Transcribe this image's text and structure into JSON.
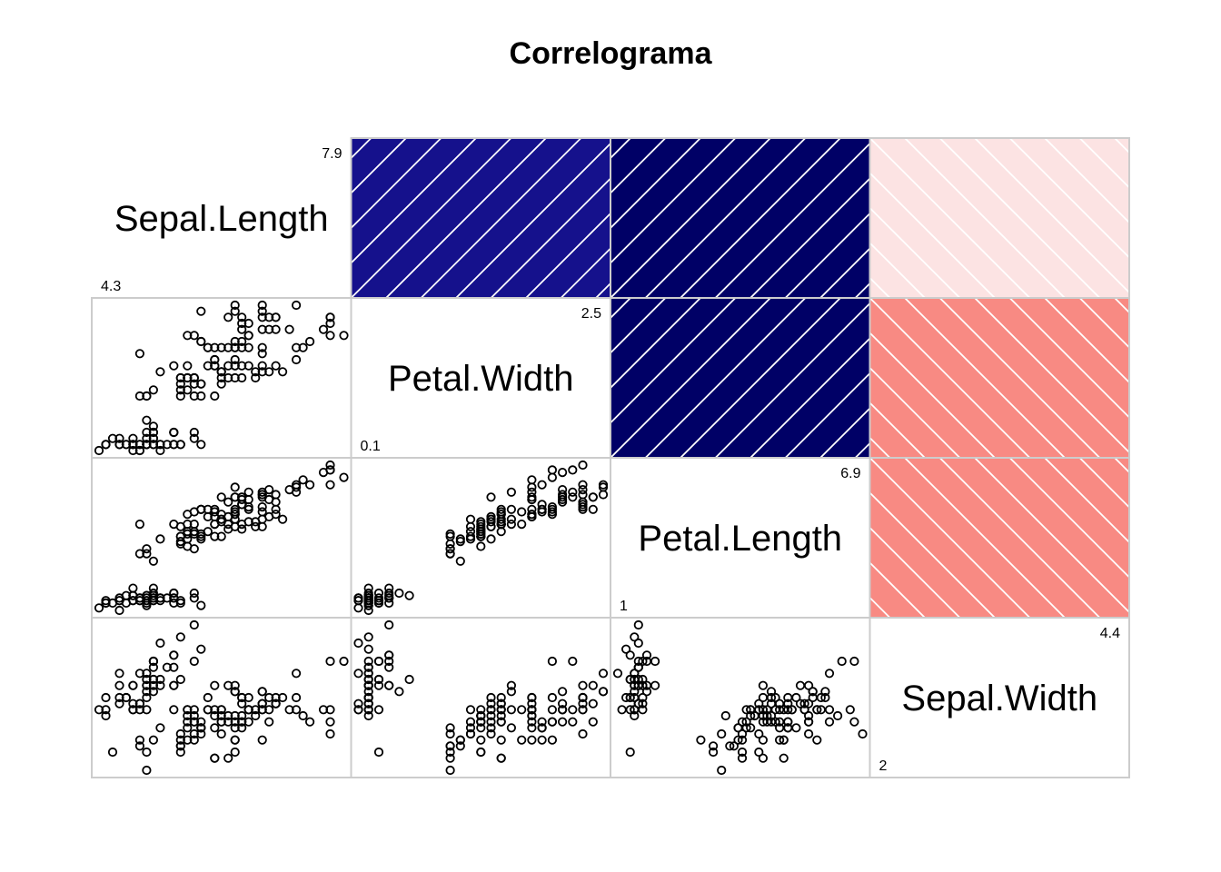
{
  "chart_data": {
    "type": "correlogram",
    "title": "Correlograma",
    "variables": [
      "Sepal.Length",
      "Petal.Width",
      "Petal.Length",
      "Sepal.Width"
    ],
    "ranges": {
      "Sepal.Length": {
        "min": "4.3",
        "max": "7.9"
      },
      "Petal.Width": {
        "min": "0.1",
        "max": "2.5"
      },
      "Petal.Length": {
        "min": "1",
        "max": "6.9"
      },
      "Sepal.Width": {
        "min": "2",
        "max": "4.4"
      }
    },
    "upper_panel": "shade",
    "lower_panel": "points",
    "diagonal_panel": "text",
    "correlations": [
      {
        "row": "Sepal.Length",
        "col": "Petal.Width",
        "r": 0.82,
        "color": "#15118C"
      },
      {
        "row": "Sepal.Length",
        "col": "Petal.Length",
        "r": 0.87,
        "color": "#000066"
      },
      {
        "row": "Sepal.Length",
        "col": "Sepal.Width",
        "r": -0.12,
        "color": "#FCE3E3"
      },
      {
        "row": "Petal.Width",
        "col": "Petal.Length",
        "r": 0.96,
        "color": "#000066"
      },
      {
        "row": "Petal.Width",
        "col": "Sepal.Width",
        "r": -0.37,
        "color": "#F88A83"
      },
      {
        "row": "Petal.Length",
        "col": "Sepal.Width",
        "r": -0.43,
        "color": "#F88A83"
      }
    ],
    "observations": [
      [
        5.1,
        3.5,
        1.4,
        0.2
      ],
      [
        4.9,
        3.0,
        1.4,
        0.2
      ],
      [
        4.7,
        3.2,
        1.3,
        0.2
      ],
      [
        4.6,
        3.1,
        1.5,
        0.2
      ],
      [
        5.0,
        3.6,
        1.4,
        0.2
      ],
      [
        5.4,
        3.9,
        1.7,
        0.4
      ],
      [
        4.6,
        3.4,
        1.4,
        0.3
      ],
      [
        5.0,
        3.4,
        1.5,
        0.2
      ],
      [
        4.4,
        2.9,
        1.4,
        0.2
      ],
      [
        4.9,
        3.1,
        1.5,
        0.1
      ],
      [
        5.4,
        3.7,
        1.5,
        0.2
      ],
      [
        4.8,
        3.4,
        1.6,
        0.2
      ],
      [
        4.8,
        3.0,
        1.4,
        0.1
      ],
      [
        4.3,
        3.0,
        1.1,
        0.1
      ],
      [
        5.8,
        4.0,
        1.2,
        0.2
      ],
      [
        5.7,
        4.4,
        1.5,
        0.4
      ],
      [
        5.4,
        3.9,
        1.3,
        0.4
      ],
      [
        5.1,
        3.5,
        1.4,
        0.3
      ],
      [
        5.7,
        3.8,
        1.7,
        0.3
      ],
      [
        5.1,
        3.8,
        1.5,
        0.3
      ],
      [
        5.4,
        3.4,
        1.7,
        0.2
      ],
      [
        5.1,
        3.7,
        1.5,
        0.4
      ],
      [
        4.6,
        3.6,
        1.0,
        0.2
      ],
      [
        5.1,
        3.3,
        1.7,
        0.5
      ],
      [
        4.8,
        3.4,
        1.9,
        0.2
      ],
      [
        5.0,
        3.0,
        1.6,
        0.2
      ],
      [
        5.0,
        3.4,
        1.6,
        0.4
      ],
      [
        5.2,
        3.5,
        1.5,
        0.2
      ],
      [
        5.2,
        3.4,
        1.4,
        0.2
      ],
      [
        4.7,
        3.2,
        1.6,
        0.2
      ],
      [
        4.8,
        3.1,
        1.6,
        0.2
      ],
      [
        5.4,
        3.4,
        1.5,
        0.4
      ],
      [
        5.2,
        4.1,
        1.5,
        0.1
      ],
      [
        5.5,
        4.2,
        1.4,
        0.2
      ],
      [
        4.9,
        3.1,
        1.5,
        0.2
      ],
      [
        5.0,
        3.2,
        1.2,
        0.2
      ],
      [
        5.5,
        3.5,
        1.3,
        0.2
      ],
      [
        4.9,
        3.6,
        1.4,
        0.1
      ],
      [
        4.4,
        3.0,
        1.3,
        0.2
      ],
      [
        5.1,
        3.4,
        1.5,
        0.2
      ],
      [
        5.0,
        3.5,
        1.3,
        0.3
      ],
      [
        4.5,
        2.3,
        1.3,
        0.3
      ],
      [
        4.4,
        3.2,
        1.3,
        0.2
      ],
      [
        5.0,
        3.5,
        1.6,
        0.6
      ],
      [
        5.1,
        3.8,
        1.9,
        0.4
      ],
      [
        4.8,
        3.0,
        1.4,
        0.3
      ],
      [
        5.1,
        3.8,
        1.6,
        0.2
      ],
      [
        4.6,
        3.2,
        1.4,
        0.2
      ],
      [
        5.3,
        3.7,
        1.5,
        0.2
      ],
      [
        5.0,
        3.3,
        1.4,
        0.2
      ],
      [
        7.0,
        3.2,
        4.7,
        1.4
      ],
      [
        6.4,
        3.2,
        4.5,
        1.5
      ],
      [
        6.9,
        3.1,
        4.9,
        1.5
      ],
      [
        5.5,
        2.3,
        4.0,
        1.3
      ],
      [
        6.5,
        2.8,
        4.6,
        1.5
      ],
      [
        5.7,
        2.8,
        4.5,
        1.3
      ],
      [
        6.3,
        3.3,
        4.7,
        1.6
      ],
      [
        4.9,
        2.4,
        3.3,
        1.0
      ],
      [
        6.6,
        2.9,
        4.6,
        1.3
      ],
      [
        5.2,
        2.7,
        3.9,
        1.4
      ],
      [
        5.0,
        2.0,
        3.5,
        1.0
      ],
      [
        5.9,
        3.0,
        4.2,
        1.5
      ],
      [
        6.0,
        2.2,
        4.0,
        1.0
      ],
      [
        6.1,
        2.9,
        4.7,
        1.4
      ],
      [
        5.6,
        2.9,
        3.6,
        1.3
      ],
      [
        6.7,
        3.1,
        4.4,
        1.4
      ],
      [
        5.6,
        3.0,
        4.5,
        1.5
      ],
      [
        5.8,
        2.7,
        4.1,
        1.0
      ],
      [
        6.2,
        2.2,
        4.5,
        1.5
      ],
      [
        5.6,
        2.5,
        3.9,
        1.1
      ],
      [
        5.9,
        3.2,
        4.8,
        1.8
      ],
      [
        6.1,
        2.8,
        4.0,
        1.3
      ],
      [
        6.3,
        2.5,
        4.9,
        1.5
      ],
      [
        6.1,
        2.8,
        4.7,
        1.2
      ],
      [
        6.4,
        2.9,
        4.3,
        1.3
      ],
      [
        6.6,
        3.0,
        4.4,
        1.4
      ],
      [
        6.8,
        2.8,
        4.8,
        1.4
      ],
      [
        6.7,
        3.0,
        5.0,
        1.7
      ],
      [
        6.0,
        2.9,
        4.5,
        1.5
      ],
      [
        5.7,
        2.6,
        3.5,
        1.0
      ],
      [
        5.5,
        2.4,
        3.8,
        1.1
      ],
      [
        5.5,
        2.4,
        3.7,
        1.0
      ],
      [
        5.8,
        2.7,
        3.9,
        1.2
      ],
      [
        6.0,
        2.7,
        5.1,
        1.6
      ],
      [
        5.4,
        3.0,
        4.5,
        1.5
      ],
      [
        6.0,
        3.4,
        4.5,
        1.6
      ],
      [
        6.7,
        3.1,
        4.7,
        1.5
      ],
      [
        6.3,
        2.3,
        4.4,
        1.3
      ],
      [
        5.6,
        3.0,
        4.1,
        1.3
      ],
      [
        5.5,
        2.5,
        4.0,
        1.3
      ],
      [
        5.5,
        2.6,
        4.4,
        1.2
      ],
      [
        6.1,
        3.0,
        4.6,
        1.4
      ],
      [
        5.8,
        2.6,
        4.0,
        1.2
      ],
      [
        5.0,
        2.3,
        3.3,
        1.0
      ],
      [
        5.6,
        2.7,
        4.2,
        1.3
      ],
      [
        5.7,
        3.0,
        4.2,
        1.2
      ],
      [
        5.7,
        2.9,
        4.2,
        1.3
      ],
      [
        6.2,
        2.9,
        4.3,
        1.3
      ],
      [
        5.1,
        2.5,
        3.0,
        1.1
      ],
      [
        5.7,
        2.8,
        4.1,
        1.3
      ],
      [
        6.3,
        3.3,
        6.0,
        2.5
      ],
      [
        5.8,
        2.7,
        5.1,
        1.9
      ],
      [
        7.1,
        3.0,
        5.9,
        2.1
      ],
      [
        6.3,
        2.9,
        5.6,
        1.8
      ],
      [
        6.5,
        3.0,
        5.8,
        2.2
      ],
      [
        7.6,
        3.0,
        6.6,
        2.1
      ],
      [
        4.9,
        2.5,
        4.5,
        1.7
      ],
      [
        7.3,
        2.9,
        6.3,
        1.8
      ],
      [
        6.7,
        2.5,
        5.8,
        1.8
      ],
      [
        7.2,
        3.6,
        6.1,
        2.5
      ],
      [
        6.5,
        3.2,
        5.1,
        2.0
      ],
      [
        6.4,
        2.7,
        5.3,
        1.9
      ],
      [
        6.8,
        3.0,
        5.5,
        2.1
      ],
      [
        5.7,
        2.5,
        5.0,
        2.0
      ],
      [
        5.8,
        2.8,
        5.1,
        2.4
      ],
      [
        6.4,
        3.2,
        5.3,
        2.3
      ],
      [
        6.5,
        3.0,
        5.5,
        1.8
      ],
      [
        7.7,
        3.8,
        6.7,
        2.2
      ],
      [
        7.7,
        2.6,
        6.9,
        2.3
      ],
      [
        6.0,
        2.2,
        5.0,
        1.5
      ],
      [
        6.9,
        3.2,
        5.7,
        2.3
      ],
      [
        5.6,
        2.8,
        4.9,
        2.0
      ],
      [
        7.7,
        2.8,
        6.7,
        2.0
      ],
      [
        6.3,
        2.7,
        4.9,
        1.8
      ],
      [
        6.7,
        3.3,
        5.7,
        2.1
      ],
      [
        7.2,
        3.2,
        6.0,
        1.8
      ],
      [
        6.2,
        2.8,
        4.8,
        1.8
      ],
      [
        6.1,
        3.0,
        4.9,
        1.8
      ],
      [
        6.4,
        2.8,
        5.6,
        2.1
      ],
      [
        7.2,
        3.0,
        5.8,
        1.6
      ],
      [
        7.4,
        2.8,
        6.1,
        1.9
      ],
      [
        7.9,
        3.8,
        6.4,
        2.0
      ],
      [
        6.4,
        2.8,
        5.6,
        2.2
      ],
      [
        6.3,
        2.8,
        5.1,
        1.5
      ],
      [
        6.1,
        2.6,
        5.6,
        1.4
      ],
      [
        7.7,
        3.0,
        6.1,
        2.3
      ],
      [
        6.3,
        3.4,
        5.6,
        2.4
      ],
      [
        6.4,
        3.1,
        5.5,
        1.8
      ],
      [
        6.0,
        3.0,
        4.8,
        1.8
      ],
      [
        6.9,
        3.1,
        5.4,
        2.1
      ],
      [
        6.7,
        3.1,
        5.6,
        2.4
      ],
      [
        6.9,
        3.1,
        5.1,
        2.3
      ],
      [
        5.8,
        2.7,
        5.1,
        1.9
      ],
      [
        6.8,
        3.2,
        5.9,
        2.3
      ],
      [
        6.7,
        3.3,
        5.7,
        2.5
      ],
      [
        6.7,
        3.0,
        5.2,
        2.3
      ],
      [
        6.3,
        2.5,
        5.0,
        1.9
      ],
      [
        6.5,
        3.0,
        5.2,
        2.0
      ],
      [
        6.2,
        3.4,
        5.4,
        2.3
      ],
      [
        5.9,
        3.0,
        5.1,
        1.8
      ]
    ]
  }
}
